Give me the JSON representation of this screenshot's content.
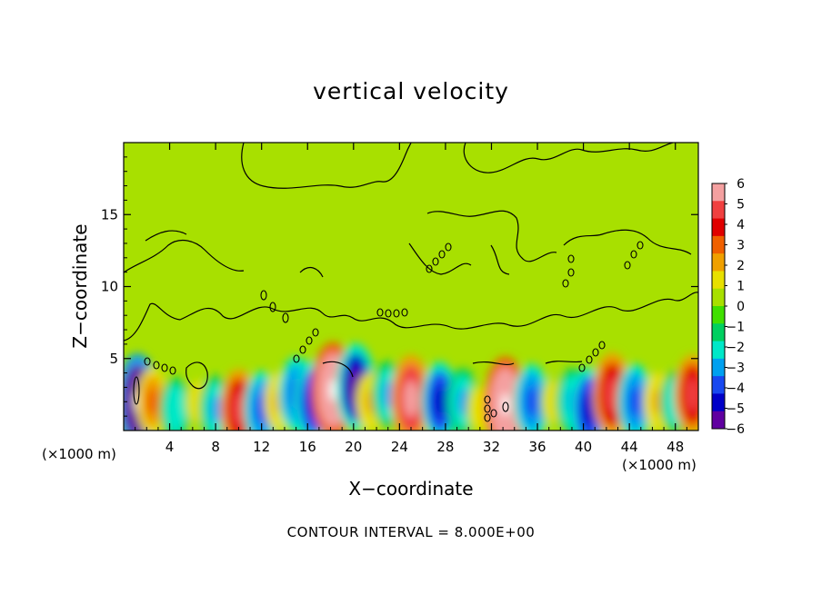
{
  "chart_data": {
    "type": "heatmap",
    "title": "vertical velocity",
    "xlabel": "X−coordinate",
    "ylabel": "Z−coordinate",
    "x_unit_label_left": "(×1000 m)",
    "x_unit_label_right": "(×1000 m)",
    "footnote": "CONTOUR INTERVAL = 8.000E+00",
    "x_ticks": [
      "4",
      "8",
      "12",
      "16",
      "20",
      "24",
      "28",
      "32",
      "36",
      "40",
      "44",
      "48"
    ],
    "x_tick_values": [
      4,
      8,
      12,
      16,
      20,
      24,
      28,
      32,
      36,
      40,
      44,
      48
    ],
    "y_ticks": [
      "5",
      "10",
      "15"
    ],
    "y_tick_values": [
      5,
      10,
      15
    ],
    "xlim": [
      0,
      50
    ],
    "ylim": [
      0,
      20
    ],
    "colorbar": {
      "labels": [
        "6",
        "5",
        "4",
        "3",
        "2",
        "1",
        "0",
        "−1",
        "−2",
        "−3",
        "−4",
        "−5",
        "−6"
      ],
      "values": [
        6,
        5,
        4,
        3,
        2,
        1,
        0,
        -1,
        -2,
        -3,
        -4,
        -5,
        -6
      ],
      "colors": [
        "#f4a0a0",
        "#f04040",
        "#e00000",
        "#f06000",
        "#f0a000",
        "#e8e000",
        "#a8e000",
        "#40e000",
        "#00d060",
        "#00e8c8",
        "#00a0f0",
        "#1848f0",
        "#0000c8",
        "#6000a0"
      ]
    },
    "cells": [
      {
        "x": 1.2,
        "z": 2.0,
        "w": -6.5
      },
      {
        "x": 2.5,
        "z": 2.0,
        "w": 3.0
      },
      {
        "x": 4.5,
        "z": 1.5,
        "w": -2.5
      },
      {
        "x": 6.5,
        "z": 2.0,
        "w": 1.5
      },
      {
        "x": 8.0,
        "z": 1.5,
        "w": -3.0
      },
      {
        "x": 10.0,
        "z": 1.5,
        "w": 4.5
      },
      {
        "x": 12.0,
        "z": 1.5,
        "w": -4.0
      },
      {
        "x": 13.5,
        "z": 2.0,
        "w": 2.0
      },
      {
        "x": 15.0,
        "z": 2.5,
        "w": -4.0
      },
      {
        "x": 16.5,
        "z": 2.0,
        "w": -5.0
      },
      {
        "x": 18.2,
        "z": 2.8,
        "w": 6.5
      },
      {
        "x": 20.2,
        "z": 3.0,
        "w": -5.5
      },
      {
        "x": 21.5,
        "z": 2.0,
        "w": 2.0
      },
      {
        "x": 23.0,
        "z": 2.5,
        "w": -3.0
      },
      {
        "x": 25.0,
        "z": 2.2,
        "w": 5.5
      },
      {
        "x": 27.5,
        "z": 2.0,
        "w": -4.5
      },
      {
        "x": 29.5,
        "z": 2.0,
        "w": -3.0
      },
      {
        "x": 31.0,
        "z": 1.5,
        "w": 1.5
      },
      {
        "x": 33.2,
        "z": 1.8,
        "w": 6.5
      },
      {
        "x": 35.5,
        "z": 2.0,
        "w": -4.0
      },
      {
        "x": 37.5,
        "z": 2.0,
        "w": 1.5
      },
      {
        "x": 39.0,
        "z": 2.0,
        "w": -3.0
      },
      {
        "x": 40.5,
        "z": 1.5,
        "w": -5.0
      },
      {
        "x": 42.5,
        "z": 2.5,
        "w": 5.0
      },
      {
        "x": 44.5,
        "z": 2.0,
        "w": -4.0
      },
      {
        "x": 46.5,
        "z": 2.0,
        "w": 2.0
      },
      {
        "x": 48.0,
        "z": 2.0,
        "w": -2.5
      },
      {
        "x": 49.5,
        "z": 2.5,
        "w": 4.5
      }
    ]
  }
}
